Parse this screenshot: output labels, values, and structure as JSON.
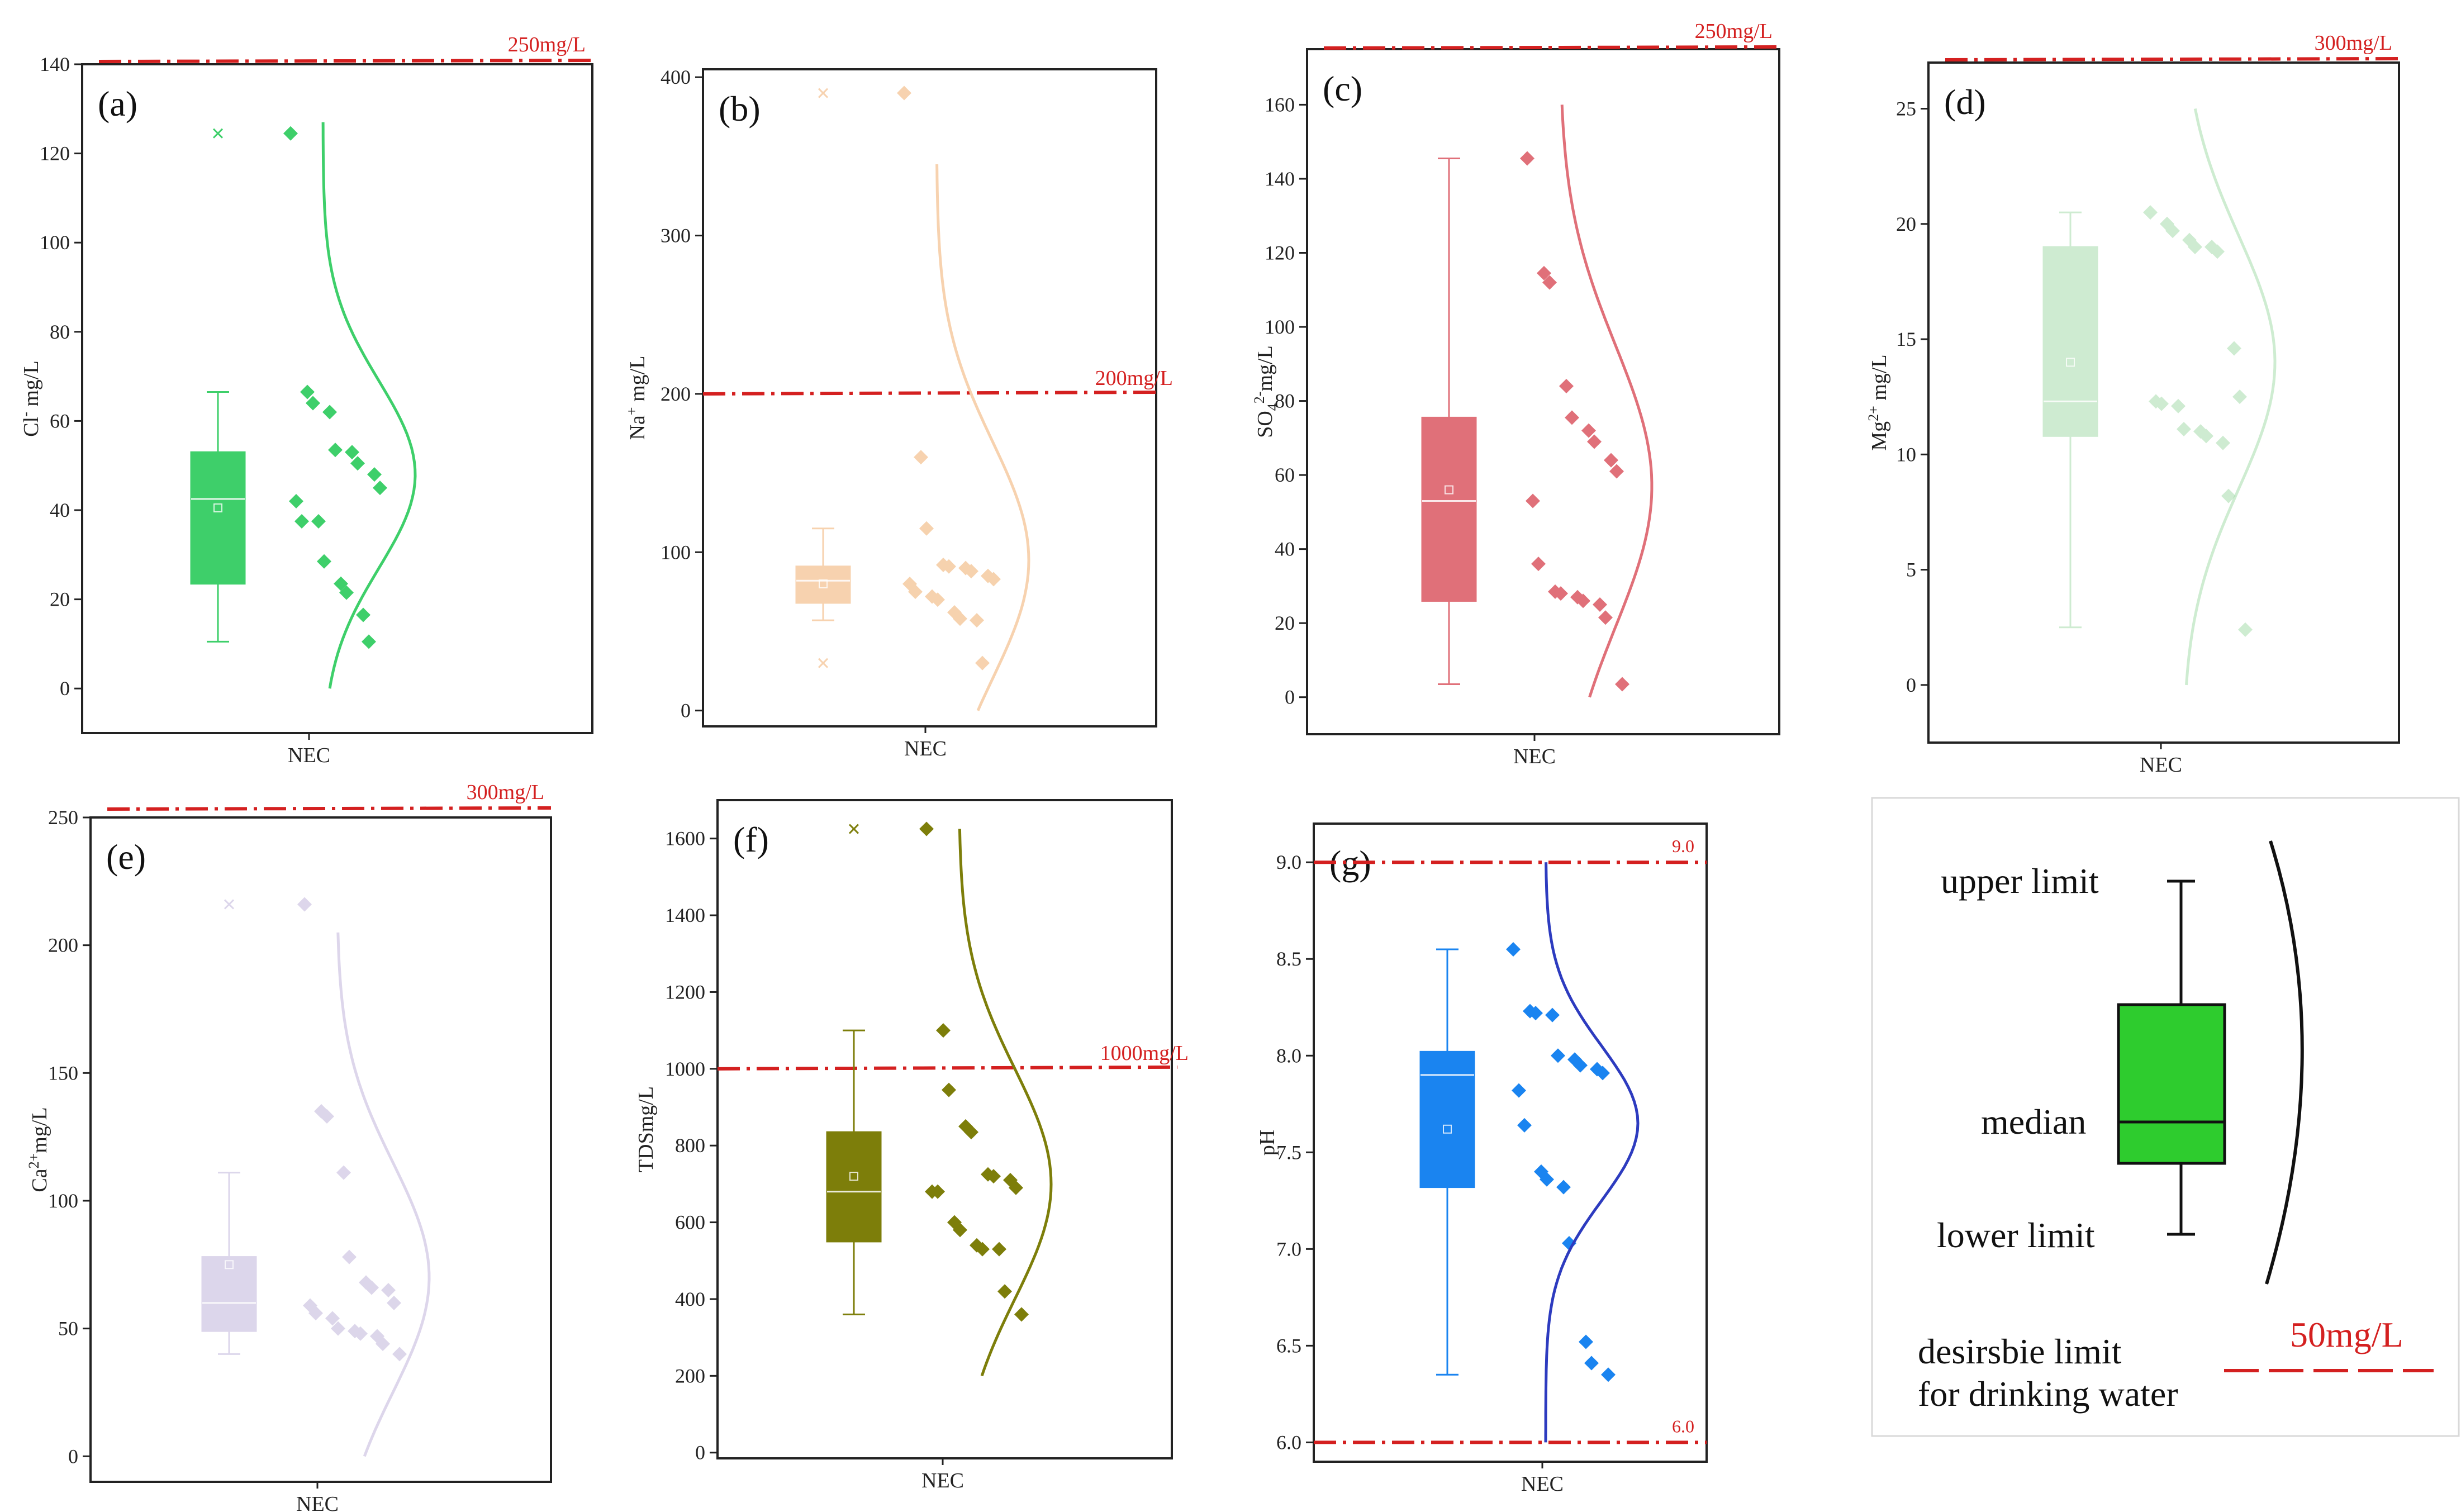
{
  "colors": {
    "limit_line": "#d42020",
    "legend_box": "#2ecc2e"
  },
  "chart_data": [
    {
      "type": "box",
      "panel": "(a)",
      "category": "NEC",
      "ylabel_main": "Cl",
      "ylabel_sup": "-",
      "ylabel_unit": " mg/L",
      "ylim": [
        -10,
        140
      ],
      "yticks": [
        0,
        20,
        40,
        60,
        80,
        100,
        120,
        140
      ],
      "limit": {
        "value": 250,
        "label": "250mg/L",
        "placement": "above-plot"
      },
      "color": "#3ecf6a",
      "opacity": 1,
      "box": {
        "whisker_low": 10.5,
        "q1": 23.5,
        "median": 42.5,
        "q3": 53,
        "whisker_high": 66.5,
        "mean": 40.5
      },
      "outliers": [
        124.5
      ],
      "points": [
        66.5,
        64,
        62,
        53.5,
        53,
        50.5,
        48,
        45,
        42,
        37.5,
        37.5,
        28.5,
        23.5,
        21.5,
        16.5,
        10.5,
        124.5
      ],
      "curve": {
        "mean": 48,
        "sd": 21,
        "start": 0,
        "end": 127
      }
    },
    {
      "type": "box",
      "panel": "(b)",
      "category": "NEC",
      "ylabel_main": "Na",
      "ylabel_sup": "+",
      "ylabel_unit": " mg/L",
      "ylim": [
        -10,
        405
      ],
      "yticks": [
        0,
        100,
        200,
        300,
        400
      ],
      "limit": {
        "value": 200,
        "label": "200mg/L",
        "placement": "inside"
      },
      "color": "#f5c79b",
      "opacity": 0.8,
      "box": {
        "whisker_low": 57,
        "q1": 68,
        "median": 82,
        "q3": 91,
        "whisker_high": 115,
        "mean": 80
      },
      "outliers": [
        30,
        390
      ],
      "points": [
        390,
        160,
        115,
        92,
        91,
        90,
        88,
        85,
        83,
        80,
        75,
        72,
        70,
        62,
        58,
        57,
        30
      ],
      "curve": {
        "mean": 95,
        "sd": 75,
        "start": 0,
        "end": 345
      }
    },
    {
      "type": "box",
      "panel": "(c)",
      "category": "NEC",
      "ylabel_main": "SO",
      "ylabel_sub": "4",
      "ylabel_sup": "2-",
      "ylabel_unit": "mg/L",
      "ylim": [
        -10,
        175
      ],
      "yticks": [
        0,
        20,
        40,
        60,
        80,
        100,
        120,
        140,
        160
      ],
      "limit": {
        "value": 250,
        "label": "250mg/L",
        "placement": "above-plot"
      },
      "color": "#e07079",
      "opacity": 1,
      "box": {
        "whisker_low": 3.5,
        "q1": 26,
        "median": 53,
        "q3": 75.5,
        "whisker_high": 145.5,
        "mean": 56
      },
      "outliers": [],
      "points": [
        145.5,
        114.5,
        112,
        84,
        75.5,
        72,
        69,
        64,
        61,
        53,
        36,
        28.5,
        28,
        27,
        26,
        25,
        21.5,
        3.5
      ],
      "curve": {
        "mean": 57,
        "sd": 38,
        "start": 0,
        "end": 160
      }
    },
    {
      "type": "box",
      "panel": "(d)",
      "category": "NEC",
      "ylabel_main": "Mg",
      "ylabel_sup": "2+",
      "ylabel_unit": " mg/L",
      "ylim": [
        -2.5,
        27
      ],
      "yticks": [
        0,
        5,
        10,
        15,
        20,
        25
      ],
      "limit": {
        "value": 300,
        "label": "300mg/L",
        "placement": "above-plot"
      },
      "color": "#9ed9a4",
      "opacity": 0.5,
      "box": {
        "whisker_low": 2.5,
        "q1": 10.8,
        "median": 12.3,
        "q3": 19,
        "whisker_high": 20.5,
        "mean": 14
      },
      "outliers": [],
      "points": [
        20.5,
        20,
        19.7,
        19.3,
        19,
        19,
        18.8,
        14.6,
        12.5,
        12.3,
        12.2,
        12.1,
        11.1,
        11,
        10.8,
        10.5,
        8.2,
        2.4
      ],
      "curve": {
        "mean": 14,
        "sd": 5.5,
        "start": 0,
        "end": 25
      }
    },
    {
      "type": "box",
      "panel": "(e)",
      "category": "NEC",
      "ylabel_main": "Ca",
      "ylabel_sup": "2+",
      "ylabel_unit": "mg/L",
      "ylim": [
        -10,
        250
      ],
      "yticks": [
        0,
        50,
        100,
        150,
        200,
        250
      ],
      "limit": {
        "value": 300,
        "label": "300mg/L",
        "placement": "above-plot"
      },
      "color": "#d4cce6",
      "opacity": 0.8,
      "box": {
        "whisker_low": 40,
        "q1": 49,
        "median": 60,
        "q3": 78,
        "whisker_high": 111,
        "mean": 75
      },
      "outliers": [
        216
      ],
      "points": [
        216,
        135,
        133,
        111,
        78,
        68,
        66,
        65,
        60,
        59,
        56,
        54,
        50,
        49,
        48,
        47,
        44,
        40
      ],
      "curve": {
        "mean": 70,
        "sd": 45,
        "start": 0,
        "end": 205
      }
    },
    {
      "type": "box",
      "panel": "(f)",
      "category": "NEC",
      "ylabel_main": "TDS",
      "ylabel_unit": "mg/L",
      "ylim": [
        -15,
        1700
      ],
      "yticks": [
        0,
        200,
        400,
        600,
        800,
        1000,
        1200,
        1400,
        1600
      ],
      "limit": {
        "value": 1000,
        "label": "1000mg/L",
        "placement": "inside"
      },
      "color": "#7d7e0a",
      "opacity": 1,
      "box": {
        "whisker_low": 360,
        "q1": 550,
        "median": 680,
        "q3": 835,
        "whisker_high": 1100,
        "mean": 720
      },
      "outliers": [
        1625
      ],
      "points": [
        1625,
        1100,
        945,
        850,
        835,
        725,
        720,
        710,
        690,
        680,
        680,
        600,
        580,
        540,
        530,
        530,
        420,
        360
      ],
      "curve": {
        "mean": 700,
        "sd": 300,
        "start": 200,
        "end": 1625
      }
    },
    {
      "type": "box",
      "panel": "(g)",
      "category": "NEC",
      "ylabel_main": "pH",
      "ylim": [
        5.9,
        9.2
      ],
      "yticks": [
        6.0,
        6.5,
        7.0,
        7.5,
        8.0,
        8.5,
        9.0
      ],
      "limits": [
        {
          "value": 9.0,
          "label": "9.0"
        },
        {
          "value": 6.0,
          "label": "6.0"
        }
      ],
      "color": "#1a84f0",
      "opacity": 1,
      "box": {
        "whisker_low": 6.35,
        "q1": 7.32,
        "median": 7.9,
        "q3": 8.02,
        "whisker_high": 8.55,
        "mean": 7.62
      },
      "outliers": [],
      "points": [
        8.55,
        8.23,
        8.22,
        8.21,
        8.0,
        7.98,
        7.95,
        7.93,
        7.91,
        7.82,
        7.64,
        7.4,
        7.36,
        7.32,
        7.03,
        6.52,
        6.41,
        6.35
      ],
      "curve": {
        "mean": 7.65,
        "sd": 0.4,
        "start": 6.0,
        "end": 9.0
      },
      "curve_color": "#2d3bbf"
    }
  ],
  "legend": {
    "upper_limit": "upper limit",
    "median": "median",
    "lower_limit": "lower limit",
    "desirable_line1": "desirsbie limit",
    "desirable_line2": "for drinking water",
    "sample_limit": "50mg/L"
  }
}
